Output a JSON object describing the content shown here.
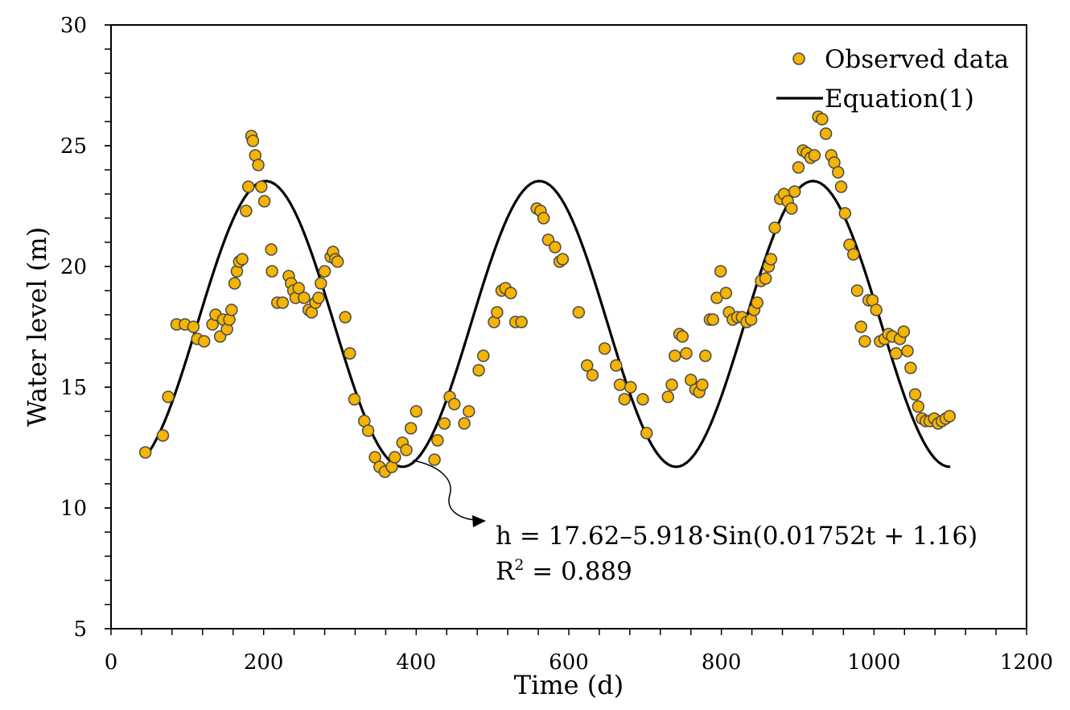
{
  "chart_data": {
    "type": "scatter",
    "title": "",
    "xlabel": "Time (d)",
    "ylabel": "Water level (m)",
    "xlim": [
      0,
      1200
    ],
    "ylim": [
      5,
      30
    ],
    "xticks": [
      0,
      200,
      400,
      600,
      800,
      1000,
      1200
    ],
    "yticks": [
      5,
      10,
      15,
      20,
      25,
      30
    ],
    "grid": false,
    "legend_position": "top-right",
    "colors": {
      "observed_fill": "#F5B400",
      "observed_edge": "#4a4a4a",
      "line": "#000000"
    },
    "series": [
      {
        "name": "Observed data",
        "kind": "scatter",
        "points": [
          [
            45,
            12.3
          ],
          [
            68,
            13.0
          ],
          [
            75,
            14.6
          ],
          [
            86,
            17.6
          ],
          [
            97,
            17.6
          ],
          [
            108,
            17.5
          ],
          [
            113,
            17.0
          ],
          [
            122,
            16.9
          ],
          [
            133,
            17.6
          ],
          [
            137,
            18.0
          ],
          [
            143,
            17.1
          ],
          [
            147,
            17.8
          ],
          [
            152,
            17.4
          ],
          [
            155,
            17.8
          ],
          [
            158,
            18.2
          ],
          [
            162,
            19.3
          ],
          [
            165,
            19.8
          ],
          [
            168,
            20.2
          ],
          [
            172,
            20.3
          ],
          [
            177,
            22.3
          ],
          [
            180,
            23.3
          ],
          [
            184,
            25.4
          ],
          [
            186,
            25.2
          ],
          [
            189,
            24.6
          ],
          [
            193,
            24.2
          ],
          [
            197,
            23.3
          ],
          [
            201,
            22.7
          ],
          [
            210,
            20.7
          ],
          [
            211,
            19.8
          ],
          [
            218,
            18.5
          ],
          [
            225,
            18.5
          ],
          [
            233,
            19.6
          ],
          [
            236,
            19.3
          ],
          [
            239,
            19.0
          ],
          [
            242,
            18.7
          ],
          [
            246,
            19.1
          ],
          [
            253,
            18.7
          ],
          [
            259,
            18.2
          ],
          [
            263,
            18.1
          ],
          [
            268,
            18.5
          ],
          [
            272,
            18.7
          ],
          [
            275,
            19.3
          ],
          [
            280,
            19.8
          ],
          [
            288,
            20.4
          ],
          [
            291,
            20.6
          ],
          [
            294,
            20.3
          ],
          [
            297,
            20.2
          ],
          [
            307,
            17.9
          ],
          [
            313,
            16.4
          ],
          [
            319,
            14.5
          ],
          [
            332,
            13.6
          ],
          [
            337,
            13.2
          ],
          [
            346,
            12.1
          ],
          [
            352,
            11.7
          ],
          [
            359,
            11.5
          ],
          [
            368,
            11.7
          ],
          [
            372,
            12.1
          ],
          [
            382,
            12.7
          ],
          [
            387,
            12.4
          ],
          [
            393,
            13.3
          ],
          [
            400,
            14.0
          ],
          [
            424,
            12.0
          ],
          [
            428,
            12.8
          ],
          [
            437,
            13.5
          ],
          [
            444,
            14.6
          ],
          [
            450,
            14.3
          ],
          [
            463,
            13.5
          ],
          [
            469,
            14.0
          ],
          [
            482,
            15.7
          ],
          [
            488,
            16.3
          ],
          [
            502,
            17.7
          ],
          [
            506,
            18.1
          ],
          [
            512,
            19.0
          ],
          [
            517,
            19.1
          ],
          [
            524,
            18.9
          ],
          [
            530,
            17.7
          ],
          [
            538,
            17.7
          ],
          [
            558,
            22.4
          ],
          [
            563,
            22.3
          ],
          [
            567,
            22.0
          ],
          [
            573,
            21.1
          ],
          [
            582,
            20.8
          ],
          [
            588,
            20.2
          ],
          [
            592,
            20.3
          ],
          [
            613,
            18.1
          ],
          [
            624,
            15.9
          ],
          [
            631,
            15.5
          ],
          [
            647,
            16.6
          ],
          [
            662,
            15.9
          ],
          [
            667,
            15.1
          ],
          [
            673,
            14.5
          ],
          [
            681,
            15.0
          ],
          [
            697,
            14.5
          ],
          [
            702,
            13.1
          ],
          [
            730,
            14.6
          ],
          [
            735,
            15.1
          ],
          [
            739,
            16.3
          ],
          [
            745,
            17.2
          ],
          [
            749,
            17.1
          ],
          [
            754,
            16.4
          ],
          [
            760,
            15.3
          ],
          [
            766,
            14.9
          ],
          [
            771,
            14.8
          ],
          [
            775,
            15.1
          ],
          [
            779,
            16.3
          ],
          [
            785,
            17.8
          ],
          [
            789,
            17.8
          ],
          [
            794,
            18.7
          ],
          [
            799,
            19.8
          ],
          [
            806,
            18.9
          ],
          [
            810,
            18.1
          ],
          [
            815,
            17.8
          ],
          [
            821,
            17.9
          ],
          [
            827,
            17.9
          ],
          [
            833,
            17.7
          ],
          [
            839,
            17.8
          ],
          [
            843,
            18.2
          ],
          [
            847,
            18.5
          ],
          [
            852,
            19.4
          ],
          [
            858,
            19.5
          ],
          [
            862,
            20.0
          ],
          [
            865,
            20.3
          ],
          [
            870,
            21.6
          ],
          [
            877,
            22.8
          ],
          [
            882,
            23.0
          ],
          [
            887,
            22.7
          ],
          [
            892,
            22.4
          ],
          [
            896,
            23.1
          ],
          [
            901,
            24.1
          ],
          [
            907,
            24.8
          ],
          [
            912,
            24.7
          ],
          [
            917,
            24.5
          ],
          [
            922,
            24.6
          ],
          [
            927,
            26.2
          ],
          [
            932,
            26.1
          ],
          [
            937,
            25.5
          ],
          [
            944,
            24.6
          ],
          [
            948,
            24.3
          ],
          [
            953,
            23.9
          ],
          [
            957,
            23.3
          ],
          [
            962,
            22.2
          ],
          [
            968,
            20.9
          ],
          [
            973,
            20.5
          ],
          [
            978,
            19.0
          ],
          [
            983,
            17.5
          ],
          [
            988,
            16.9
          ],
          [
            993,
            18.6
          ],
          [
            998,
            18.6
          ],
          [
            1003,
            18.2
          ],
          [
            1008,
            16.9
          ],
          [
            1014,
            17.0
          ],
          [
            1019,
            17.2
          ],
          [
            1024,
            17.1
          ],
          [
            1029,
            16.4
          ],
          [
            1034,
            17.0
          ],
          [
            1039,
            17.3
          ],
          [
            1044,
            16.5
          ],
          [
            1048,
            15.8
          ],
          [
            1054,
            14.7
          ],
          [
            1058,
            14.2
          ],
          [
            1063,
            13.7
          ],
          [
            1068,
            13.6
          ],
          [
            1073,
            13.6
          ],
          [
            1079,
            13.7
          ],
          [
            1084,
            13.5
          ],
          [
            1089,
            13.6
          ],
          [
            1094,
            13.7
          ],
          [
            1099,
            13.8
          ]
        ]
      },
      {
        "name": "Equation(1)",
        "kind": "line",
        "equation": {
          "a": 17.62,
          "b": -5.918,
          "omega": 0.01752,
          "phi": 1.16
        },
        "x_range": [
          45,
          1100
        ],
        "step": 5
      }
    ],
    "annotation": {
      "equation_text": "h = 17.62–5.918·Sin(0.01752t + 1.16)",
      "r2_label": "R",
      "r2_superscript": "2",
      "r2_value": " = 0.889",
      "points_to": [
        380,
        11.9
      ]
    }
  }
}
